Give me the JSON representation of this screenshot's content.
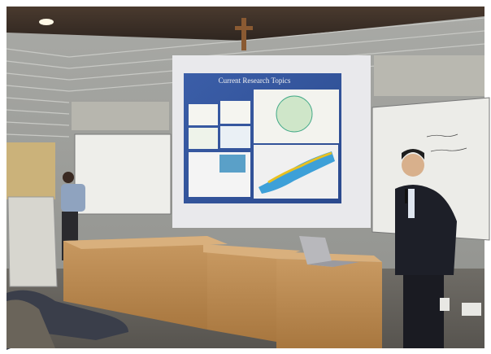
{
  "slide": {
    "title": "Current Research Topics"
  }
}
